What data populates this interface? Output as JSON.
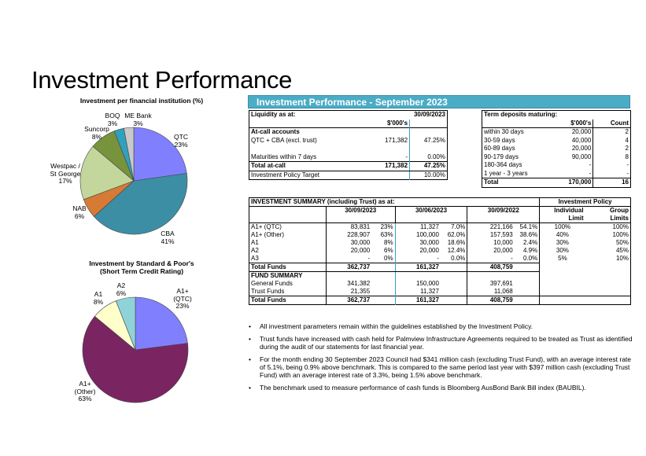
{
  "page": {
    "title": "Investment Performance"
  },
  "chart_data": [
    {
      "type": "pie",
      "title": "Investment per financial institution (%)",
      "categories": [
        "QTC",
        "CBA",
        "NAB",
        "Westpac / St George",
        "Suncorp",
        "BOQ",
        "ME Bank"
      ],
      "values": [
        23,
        41,
        6,
        17,
        8,
        3,
        3
      ],
      "labels": [
        {
          "name": "QTC",
          "pct": "23%"
        },
        {
          "name": "CBA",
          "pct": "41%"
        },
        {
          "name": "NAB",
          "pct": "6%"
        },
        {
          "name1": "Westpac /",
          "name2": "St George",
          "pct": "17%"
        },
        {
          "name": "Suncorp",
          "pct": "8%"
        },
        {
          "name": "BOQ",
          "pct": "3%"
        },
        {
          "name": "ME Bank",
          "pct": "3%"
        }
      ],
      "colors": [
        "#8080ff",
        "#3c8ea5",
        "#d67a35",
        "#c3d69b",
        "#77933c",
        "#31a0bf",
        "#c9c9c9"
      ]
    },
    {
      "type": "pie",
      "title1": "Investment by Standard & Poor's",
      "title2": "(Short Term Credit Rating)",
      "categories": [
        "A1+ (QTC)",
        "A1+ (Other)",
        "A1",
        "A2"
      ],
      "values": [
        23,
        63,
        8,
        6
      ],
      "labels": [
        {
          "name1": "A1+",
          "name2": "(QTC)",
          "pct": "23%"
        },
        {
          "name1": "A1+",
          "name2": "(Other)",
          "pct": "63%"
        },
        {
          "name": "A1",
          "pct": "8%"
        },
        {
          "name": "A2",
          "pct": "6%"
        }
      ],
      "colors": [
        "#8080ff",
        "#7b2462",
        "#ffffcc",
        "#8fd3d8"
      ]
    }
  ],
  "banner": {
    "title": "Investment Performance - September 2023"
  },
  "liquidity": {
    "label": "Liquidity as at:",
    "date": "30/09/2023",
    "unit": "$'000's",
    "section": "At-call accounts",
    "rows": [
      {
        "label": "QTC + CBA (excl. trust)",
        "value": "171,382",
        "pct": "47.25%"
      },
      {
        "label": "Maturities within 7 days",
        "value": "-",
        "pct": "0.00%"
      }
    ],
    "total": {
      "label": "Total at-call",
      "value": "171,382",
      "pct": "47.25%"
    },
    "target": {
      "label": "Investment Policy Target",
      "pct": "10.00%"
    }
  },
  "term_deposits": {
    "label": "Term deposits maturing:",
    "unit": "$'000's",
    "count_label": "Count",
    "rows": [
      {
        "label": "within 30 days",
        "value": "20,000",
        "count": "2"
      },
      {
        "label": "30-59 days",
        "value": "40,000",
        "count": "4"
      },
      {
        "label": "60-89 days",
        "value": "20,000",
        "count": "2"
      },
      {
        "label": "90-179 days",
        "value": "90,000",
        "count": "8"
      },
      {
        "label": "180-364 days",
        "value": "-",
        "count": "-"
      },
      {
        "label": "1 year - 3 years",
        "value": "-",
        "count": "-"
      }
    ],
    "total": {
      "label": "Total",
      "value": "170,000",
      "count": "16"
    }
  },
  "summary": {
    "title": "INVESTMENT SUMMARY (including Trust) as at:",
    "policy_header": "Investment Policy",
    "dates": [
      "30/09/2023",
      "30/06/2023",
      "30/09/2022"
    ],
    "limit_headers": {
      "ind1": "Individual",
      "ind2": "Limit",
      "grp1": "Group",
      "grp2": "Limits"
    },
    "rows": [
      {
        "label": "A1+ (QTC)",
        "v1": "83,831",
        "p1": "23%",
        "v2": "11,327",
        "p2": "7.0%",
        "v3": "221,166",
        "p3": "54.1%",
        "ind": "100%",
        "grp": "100%"
      },
      {
        "label": "A1+ (Other)",
        "v1": "228,907",
        "p1": "63%",
        "v2": "100,000",
        "p2": "62.0%",
        "v3": "157,593",
        "p3": "38.6%",
        "ind": "40%",
        "grp": "100%"
      },
      {
        "label": "A1",
        "v1": "30,000",
        "p1": "8%",
        "v2": "30,000",
        "p2": "18.6%",
        "v3": "10,000",
        "p3": "2.4%",
        "ind": "30%",
        "grp": "50%"
      },
      {
        "label": "A2",
        "v1": "20,000",
        "p1": "6%",
        "v2": "20,000",
        "p2": "12.4%",
        "v3": "20,000",
        "p3": "4.9%",
        "ind": "30%",
        "grp": "45%"
      },
      {
        "label": "A3",
        "v1": "-",
        "p1": "0%",
        "v2": "-",
        "p2": "0.0%",
        "v3": "-",
        "p3": "0.0%",
        "ind": "5%",
        "grp": "10%"
      }
    ],
    "total_funds": {
      "label": "Total Funds",
      "v1": "362,737",
      "v2": "161,327",
      "v3": "408,759"
    },
    "fund_summary": {
      "title": "FUND SUMMARY",
      "rows": [
        {
          "label": "General Funds",
          "v1": "341,382",
          "v2": "150,000",
          "v3": "397,691"
        },
        {
          "label": "Trust Funds",
          "v1": "21,355",
          "v2": "11,327",
          "v3": "11,068"
        }
      ],
      "total": {
        "label": "Total Funds",
        "v1": "362,737",
        "v2": "161,327",
        "v3": "408,759"
      }
    }
  },
  "bullets": [
    "All investment parameters remain within the guidelines established by the Investment Policy.",
    "Trust funds have increased with cash held for Palmview Infrastructure Agreements required to be treated as Trust as identified during the audit of our statements for last financial year.",
    "For the month ending 30 September 2023 Council had $341 million cash (excluding Trust Fund), with an average interest rate of 5.1%, being 0.9% above benchmark.  This is compared to the same period last year with $397 million cash (excluding Trust Fund) with an average interest rate of 3.3%, being 1.5% above benchmark.",
    "The benchmark used to measure performance of cash funds is Bloomberg AusBond Bank Bill index (BAUBIL)."
  ]
}
